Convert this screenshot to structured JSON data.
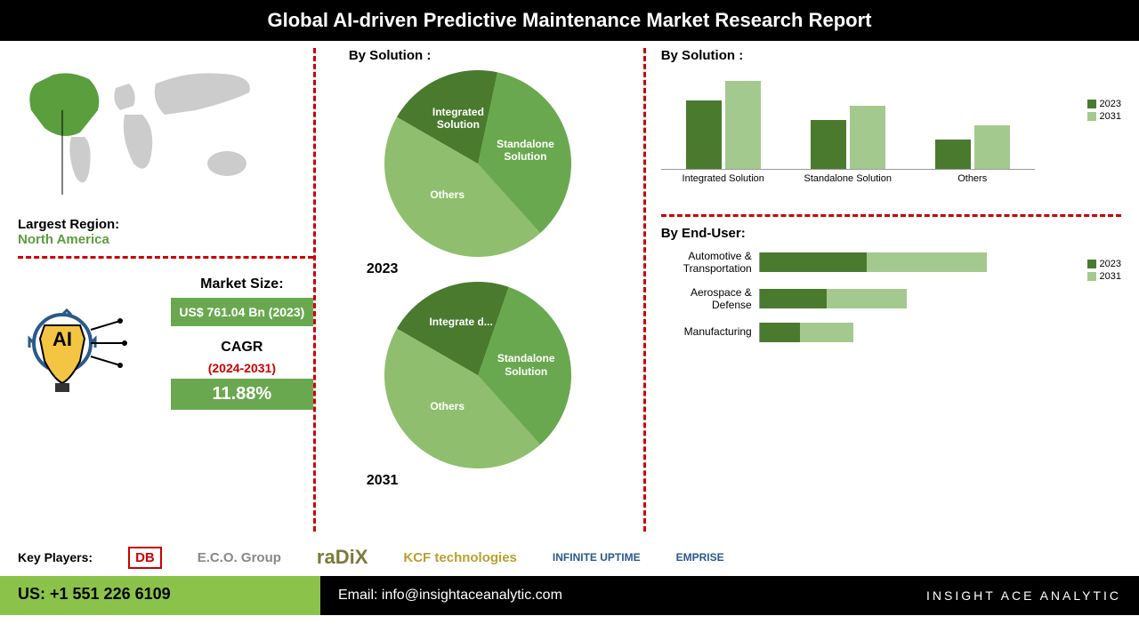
{
  "header": {
    "title": "Global AI-driven Predictive Maintenance Market  Research Report"
  },
  "region": {
    "label": "Largest Region:",
    "name": "North America",
    "highlight_color": "#5a9e3e",
    "map_color": "#cccccc"
  },
  "market_size": {
    "label": "Market Size:",
    "value": "US$ 761.04 Bn (2023)",
    "box_color": "#6aa84f"
  },
  "cagr": {
    "label": "CAGR",
    "period": "(2024-2031)",
    "value": "11.88%",
    "box_color": "#6aa84f",
    "period_color": "#c00000"
  },
  "pie_charts": {
    "title": "By Solution :",
    "pies": [
      {
        "year": "2023",
        "slices": [
          {
            "label": "Integrated Solution",
            "value": 20,
            "color": "#4a7a2e"
          },
          {
            "label": "Standalone Solution",
            "value": 35,
            "color": "#6aa84f"
          },
          {
            "label": "Others",
            "value": 45,
            "color": "#8fbf6e"
          }
        ]
      },
      {
        "year": "2031",
        "slices": [
          {
            "label": "Integrate d...",
            "value": 22,
            "color": "#4a7a2e"
          },
          {
            "label": "Standalone Solution",
            "value": 33,
            "color": "#6aa84f"
          },
          {
            "label": "Others",
            "value": 45,
            "color": "#8fbf6e"
          }
        ]
      }
    ]
  },
  "bar_chart": {
    "title": "By  Solution :",
    "categories": [
      "Integrated Solution",
      "Standalone Solution",
      "Others"
    ],
    "series": [
      {
        "name": "2023",
        "color": "#4a7a2e",
        "values": [
          70,
          50,
          30
        ]
      },
      {
        "name": "2031",
        "color": "#a4c98f",
        "values": [
          90,
          65,
          45
        ]
      }
    ],
    "ymax": 100,
    "grid_color": "#e0e0e0"
  },
  "hbar_chart": {
    "title": "By End-User:",
    "categories": [
      "Automotive & Transportation",
      "Aerospace & Defense",
      "Manufacturing"
    ],
    "series": [
      {
        "name": "2023",
        "color": "#4a7a2e",
        "values": [
          40,
          25,
          15
        ]
      },
      {
        "name": "2031",
        "color": "#a4c98f",
        "values": [
          45,
          30,
          20
        ]
      }
    ],
    "xmax": 100
  },
  "key_players": {
    "label": "Key Players:",
    "logos": [
      "DB",
      "E.C.O. Group",
      "raDiX",
      "KCF technologies",
      "INFINITE UPTIME",
      "EMPRISE"
    ]
  },
  "footer": {
    "phone": "US: +1 551 226 6109",
    "email": "Email: info@insightaceanalytic.com",
    "brand": "INSIGHT ACE ANALYTIC"
  },
  "colors": {
    "divider": "#c00000",
    "background": "#ffffff"
  }
}
